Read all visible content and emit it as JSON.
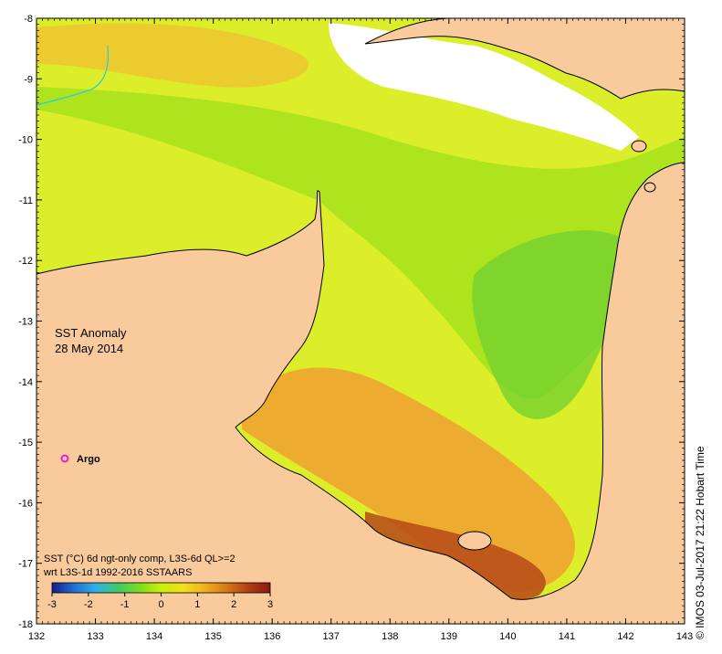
{
  "title": {
    "line1": "SST Anomaly",
    "line2": "28 May 2014"
  },
  "argo_label": "Argo",
  "legend": {
    "line1": "SST (°C) 6d ngt-only comp, L3S-6d QL>=2",
    "line2": "wrt L3S-1d 1992-2016 SSTAARS",
    "ticks": [
      "-3",
      "-2",
      "-1",
      "0",
      "1",
      "2",
      "3"
    ],
    "range": [
      -3,
      3
    ],
    "colors": [
      "#1a1a8c",
      "#1f6fd0",
      "#2fb0e8",
      "#3cc86a",
      "#7ddc1f",
      "#c8f00a",
      "#f0e01a",
      "#f0b020",
      "#d87818",
      "#b04010",
      "#8c1a10"
    ]
  },
  "credit": "© IMOS 03-Jul-2017 21:22 Hobart Time",
  "axes": {
    "x_ticks": [
      "132",
      "133",
      "134",
      "135",
      "136",
      "137",
      "138",
      "139",
      "140",
      "141",
      "142",
      "143"
    ],
    "y_ticks": [
      "-8",
      "-9",
      "-10",
      "-11",
      "-12",
      "-13",
      "-14",
      "-15",
      "-16",
      "-17",
      "-18"
    ],
    "lon_range": [
      132,
      143
    ],
    "lat_range": [
      -8,
      -18
    ]
  },
  "colors": {
    "land": "#f9cb9c",
    "water_yellow": "#e6ec2a",
    "water_green": "#7fd82a",
    "water_orange": "#f0a830",
    "water_red": "#b8501a",
    "argo": "#e020e0",
    "coast": "#000000",
    "no_data": "#ffffff"
  }
}
